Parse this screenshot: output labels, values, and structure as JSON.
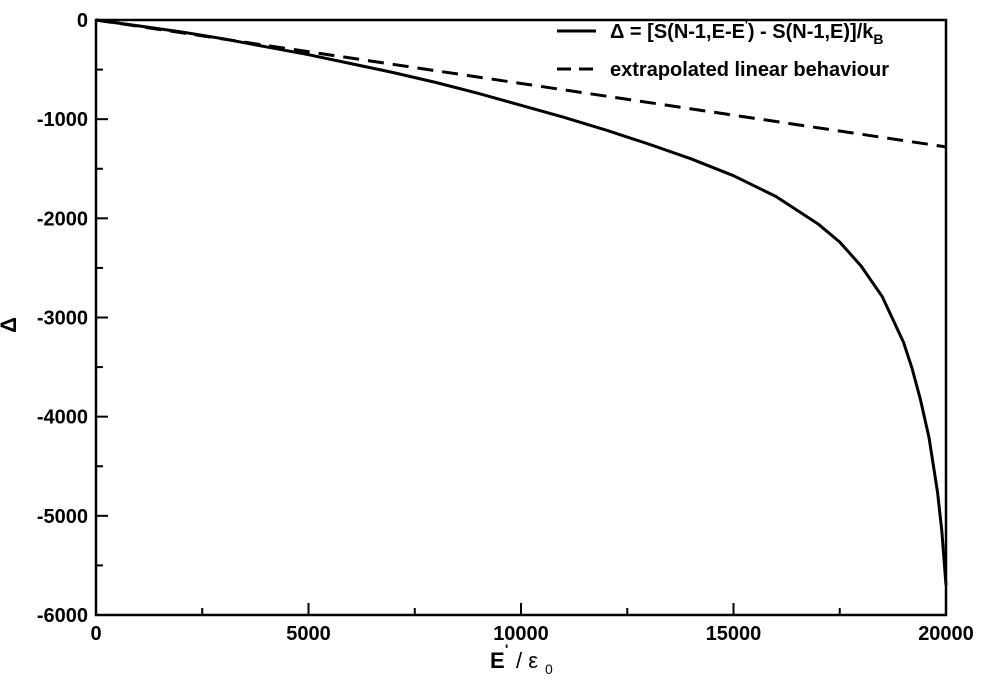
{
  "chart_data": {
    "type": "line",
    "xlabel": "E' / ε0",
    "ylabel": "Δ",
    "xlim": [
      0,
      20000
    ],
    "ylim": [
      -6000,
      0
    ],
    "x_ticks": [
      0,
      5000,
      10000,
      15000,
      20000
    ],
    "y_ticks": [
      0,
      -1000,
      -2000,
      -3000,
      -4000,
      -5000,
      -6000
    ],
    "x_tick_labels": [
      "0",
      "5000",
      "10000",
      "15000",
      "20000"
    ],
    "y_tick_labels": [
      "0",
      "-1000",
      "-2000",
      "-3000",
      "-4000",
      "-5000",
      "-6000"
    ],
    "grid": false,
    "legend_position": "top-right",
    "series": [
      {
        "name": "Δ = [S(N-1,E-E') - S(N-1,E)]/kB",
        "style": "solid",
        "color": "#000000",
        "x": [
          0,
          1000,
          2000,
          3000,
          4000,
          5000,
          6000,
          7000,
          8000,
          9000,
          10000,
          11000,
          12000,
          13000,
          14000,
          15000,
          16000,
          17000,
          17500,
          18000,
          18500,
          19000,
          19200,
          19400,
          19600,
          19800,
          19900,
          20000
        ],
        "y": [
          0,
          -60,
          -120,
          -190,
          -270,
          -350,
          -440,
          -530,
          -630,
          -740,
          -860,
          -980,
          -1110,
          -1250,
          -1400,
          -1570,
          -1780,
          -2060,
          -2240,
          -2480,
          -2790,
          -3250,
          -3510,
          -3830,
          -4210,
          -4760,
          -5150,
          -5700
        ]
      },
      {
        "name": "extrapolated linear behaviour",
        "style": "dashed",
        "color": "#000000",
        "x": [
          0,
          20000
        ],
        "y": [
          0,
          -1280
        ]
      }
    ]
  }
}
